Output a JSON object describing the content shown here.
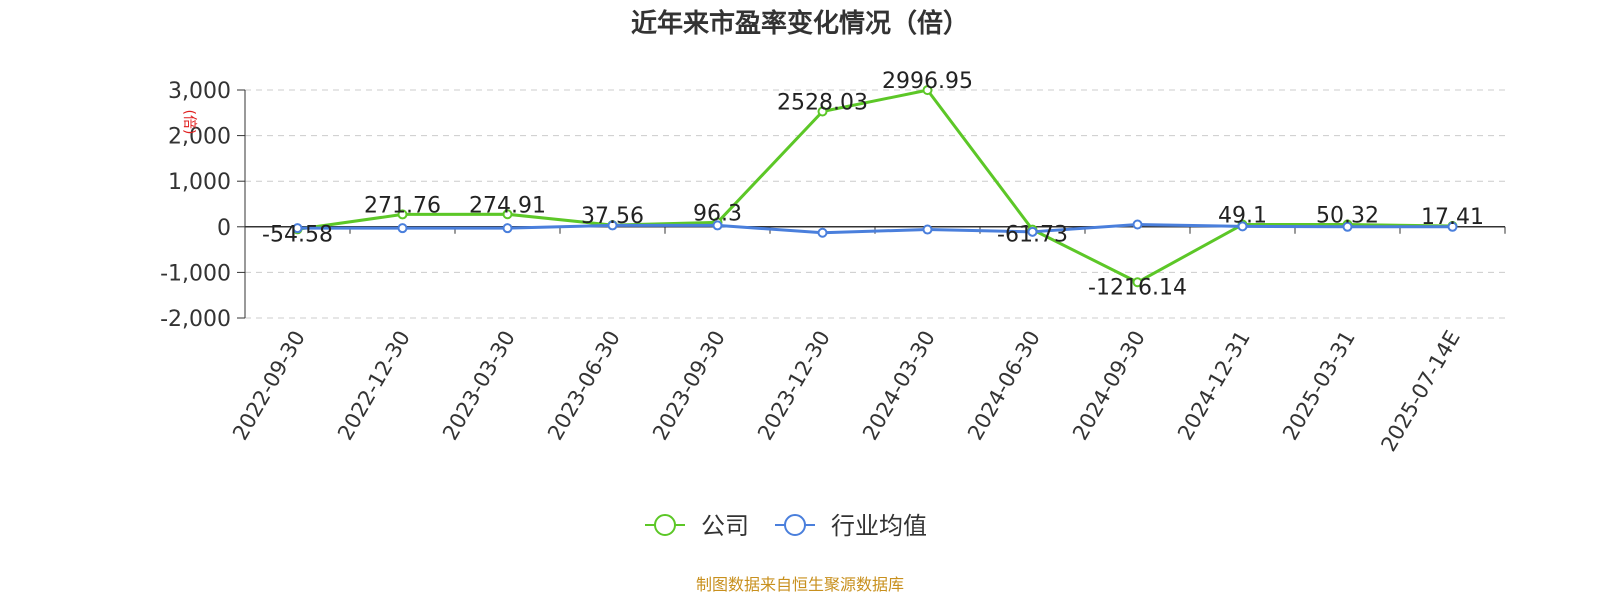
{
  "chart_data": {
    "type": "line",
    "title": "近年来市盈率变化情况（倍）",
    "ylabel": "(倍)",
    "ylim": [
      -2000,
      3000
    ],
    "yticks": [
      3000,
      2000,
      1000,
      0,
      -1000,
      -2000
    ],
    "ytick_labels": [
      "3,000",
      "2,000",
      "1,000",
      "0",
      "-1,000",
      "-2,000"
    ],
    "categories": [
      "2022-09-30",
      "2022-12-30",
      "2023-03-30",
      "2023-06-30",
      "2023-09-30",
      "2023-12-30",
      "2024-03-30",
      "2024-06-30",
      "2024-09-30",
      "2024-12-31",
      "2025-03-31",
      "2025-07-14E"
    ],
    "series": [
      {
        "name": "公司",
        "color": "#5cc727",
        "values": [
          -54.58,
          271.76,
          274.91,
          37.56,
          96.3,
          2528.03,
          2996.95,
          -61.73,
          -1216.14,
          49.1,
          50.32,
          17.41
        ],
        "data_labels": [
          "-54.58",
          "271.76",
          "274.91",
          "37.56",
          "96.3",
          "2528.03",
          "2996.95",
          "-61.73",
          "-1216.14",
          "49.1",
          "50.32",
          "17.41"
        ]
      },
      {
        "name": "行业均值",
        "color": "#4a7fdc",
        "values": [
          -30,
          -30,
          -30,
          30,
          30,
          -130,
          -60,
          -110,
          50,
          10,
          0,
          0
        ]
      }
    ],
    "grid": true,
    "legend_position": "bottom-center",
    "source_note": "制图数据来自恒生聚源数据库"
  }
}
